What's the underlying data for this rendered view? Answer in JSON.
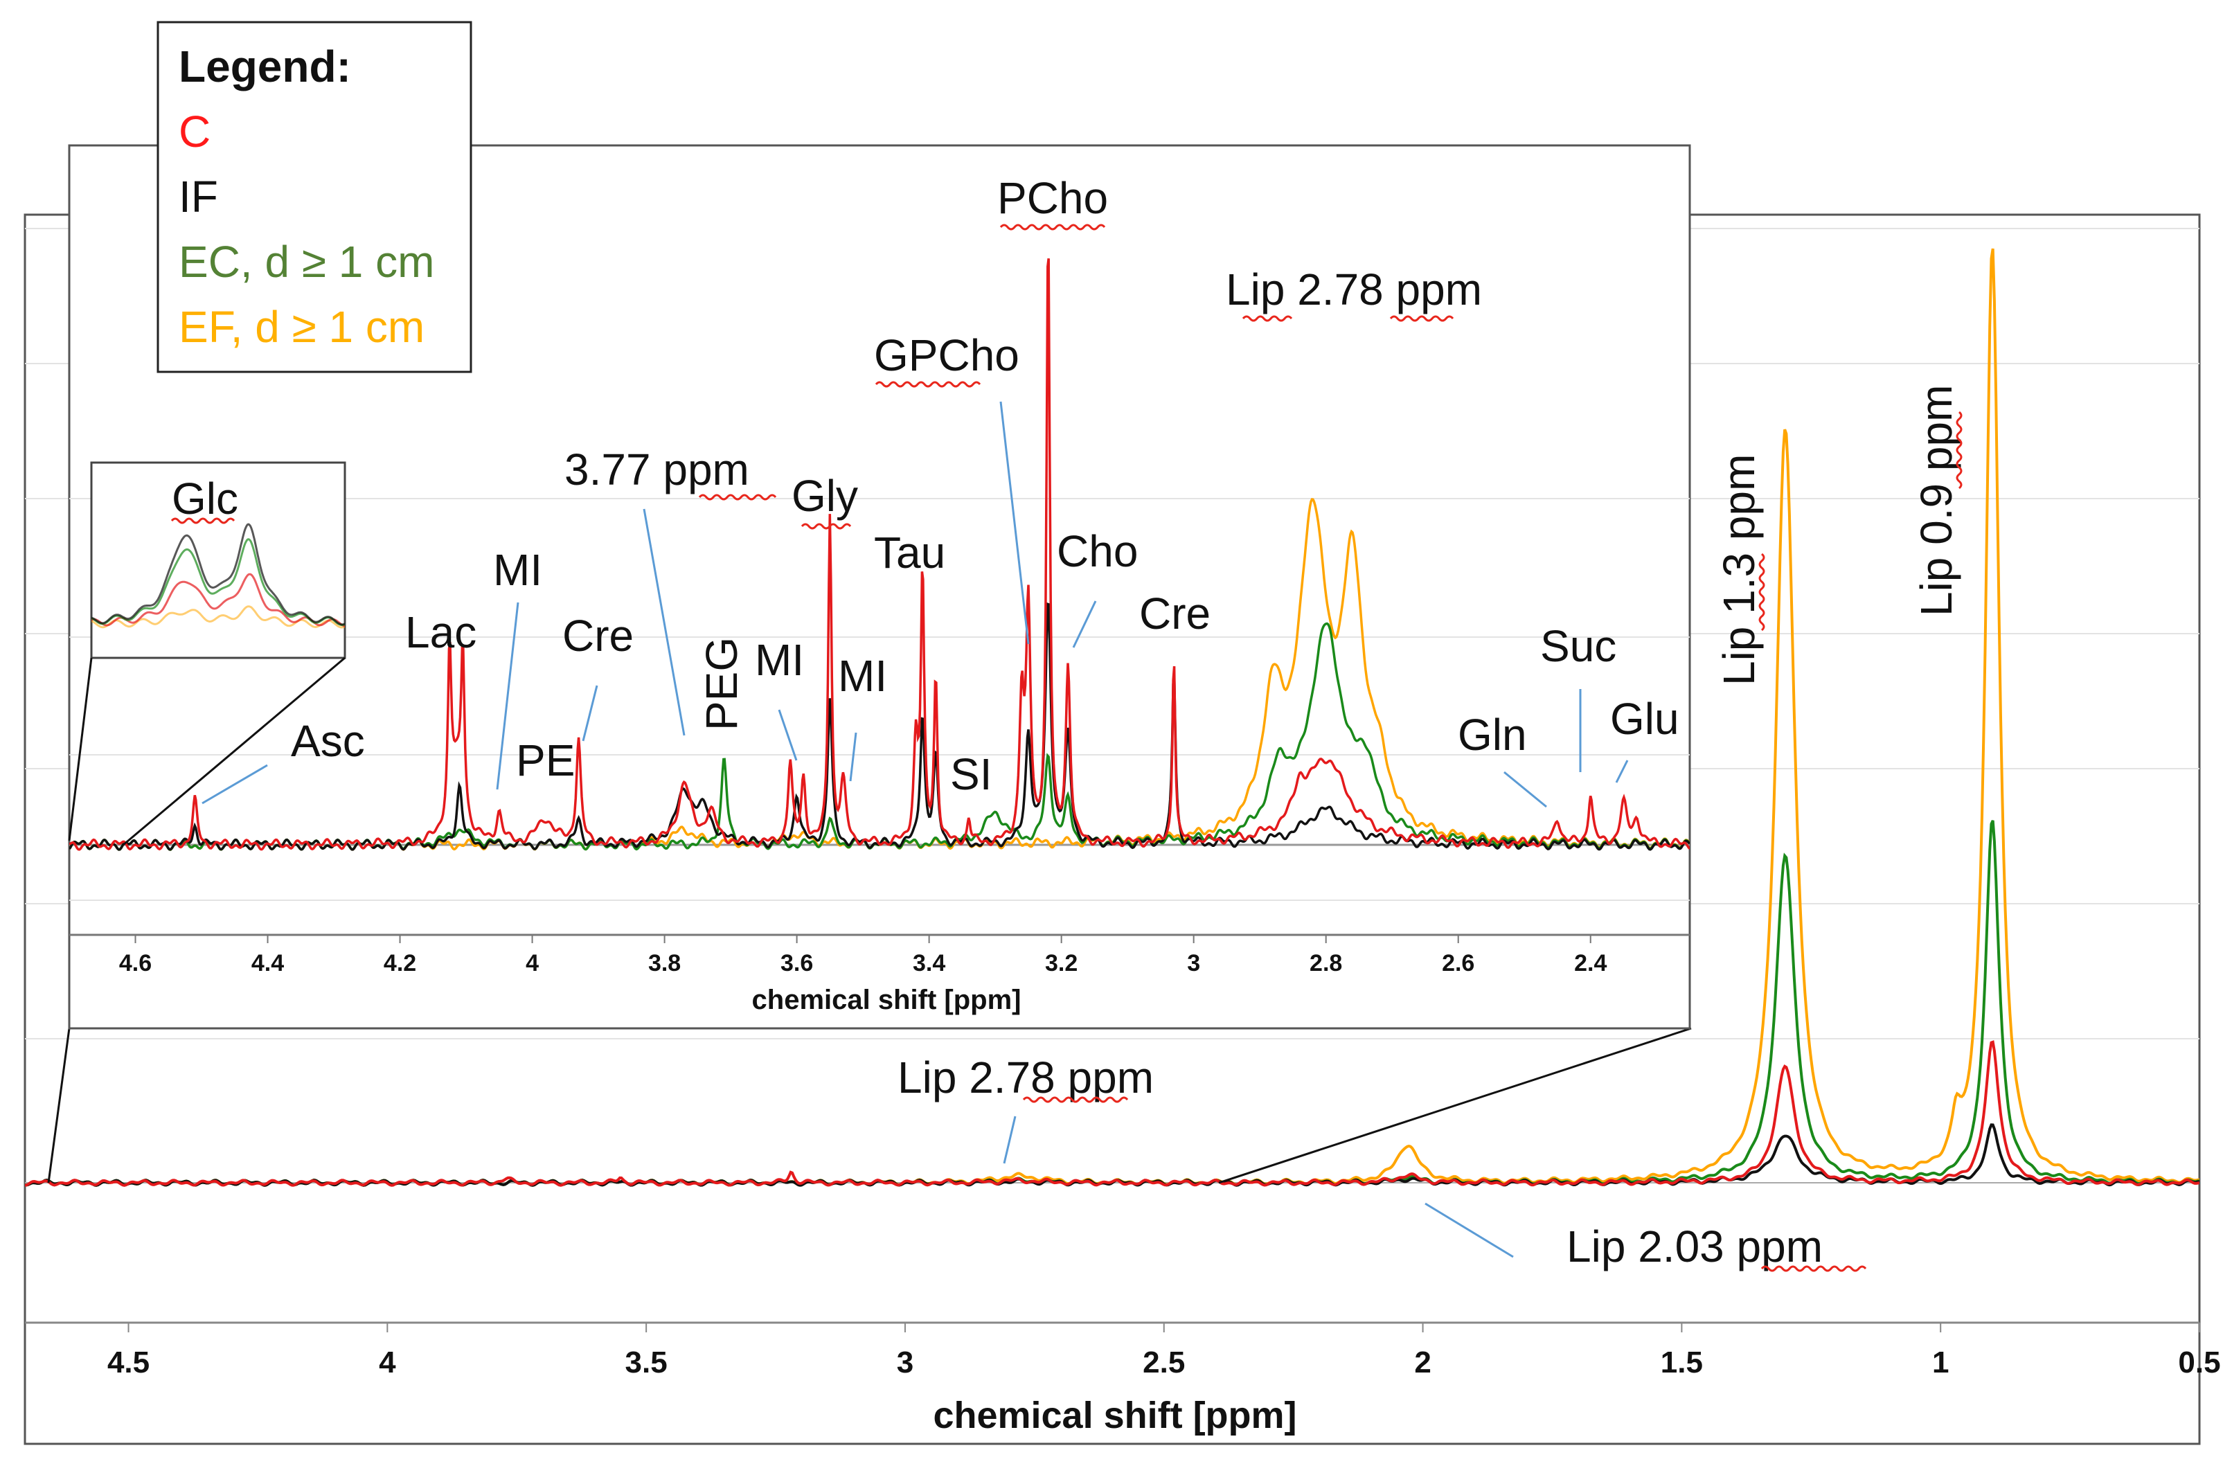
{
  "legend": {
    "title": "Legend:",
    "entries": [
      {
        "label": "C",
        "color": "#ff1a1a"
      },
      {
        "label": "IF",
        "color": "#111111"
      },
      {
        "label": "EC, d ≥ 1 cm",
        "color": "#548235"
      },
      {
        "label": "EF, d ≥ 1 cm",
        "color": "#ffb000"
      }
    ]
  },
  "colors": {
    "C": "#e41a1c",
    "IF": "#111111",
    "EC": "#1a8a1a",
    "EF": "#ffa500",
    "grid": "#e3e3e3",
    "pointer": "#5b9bd5"
  },
  "chart_data": [
    {
      "type": "line",
      "name": "full spectrum",
      "xlabel": "chemical shift [ppm]",
      "xlim": [
        4.7,
        0.5
      ],
      "x_ticks": [
        "4.5",
        "4",
        "3.5",
        "3",
        "2.5",
        "2",
        "1.5",
        "1",
        "0.5"
      ],
      "peaks_ppm": {
        "Lip 2.78 ppm": 2.78,
        "Lip 2.03 ppm": 2.03,
        "Lip 1.3 ppm": 1.3,
        "Lip 0.9 ppm": 0.9
      },
      "series": [
        {
          "name": "C",
          "relative_heights": {
            "2.78": 0.01,
            "2.03": 0.04,
            "1.3": 0.62,
            "0.9": 0.75
          }
        },
        {
          "name": "IF",
          "relative_heights": {
            "2.78": 0.005,
            "2.03": 0.02,
            "1.3": 0.25,
            "0.9": 0.3
          }
        },
        {
          "name": "EC, d ≥ 1 cm",
          "relative_heights": {
            "2.78": 0.008,
            "2.03": 0.03,
            "1.3": 1.75,
            "0.9": 1.93
          }
        },
        {
          "name": "EF, d ≥ 1 cm",
          "relative_heights": {
            "2.78": 0.03,
            "2.03": 0.2,
            "1.3": 4.03,
            "0.9": 4.99
          }
        }
      ],
      "annotations": [
        "Lip 2.78 ppm",
        "Lip 2.03 ppm",
        "Lip 1.3 ppm",
        "Lip 0.9 ppm"
      ]
    },
    {
      "type": "line",
      "name": "inset 4.7 - 2.25 ppm",
      "xlabel": "chemical shift [ppm]",
      "xlim": [
        4.7,
        2.25
      ],
      "x_ticks": [
        "4.6",
        "4.4",
        "4.2",
        "4",
        "3.8",
        "3.6",
        "3.4",
        "3.2",
        "3",
        "2.8",
        "2.6",
        "2.4"
      ],
      "peak_labels": [
        {
          "label": "Asc",
          "ppm": 4.51
        },
        {
          "label": "Lac",
          "ppm": 4.11
        },
        {
          "label": "MI",
          "ppm": 4.05
        },
        {
          "label": "PE",
          "ppm": 3.98
        },
        {
          "label": "Cre",
          "ppm": 3.93
        },
        {
          "label": "3.77 ppm",
          "ppm": 3.77
        },
        {
          "label": "PEG",
          "ppm": 3.71
        },
        {
          "label": "MI",
          "ppm": 3.61
        },
        {
          "label": "Gly",
          "ppm": 3.55
        },
        {
          "label": "MI",
          "ppm": 3.53
        },
        {
          "label": "Tau",
          "ppm": 3.42
        },
        {
          "label": "SI",
          "ppm": 3.34
        },
        {
          "label": "GPCho",
          "ppm": 3.23
        },
        {
          "label": "PCho",
          "ppm": 3.22
        },
        {
          "label": "Cho",
          "ppm": 3.19
        },
        {
          "label": "Cre",
          "ppm": 3.03
        },
        {
          "label": "Lip 2.78 ppm",
          "ppm": 2.78
        },
        {
          "label": "Gln",
          "ppm": 2.45
        },
        {
          "label": "Suc",
          "ppm": 2.4
        },
        {
          "label": "Glu",
          "ppm": 2.34
        }
      ],
      "series_peak_heights": {
        "C": {
          "4.51": 0.09,
          "4.12": 0.33,
          "4.10": 0.33,
          "3.93": 0.21,
          "3.77": 0.12,
          "3.55": 0.67,
          "3.41": 0.54,
          "3.25": 0.46,
          "3.22": 1.23,
          "3.19": 0.36,
          "3.03": 0.38,
          "2.80": 0.21,
          "2.40": 0.11
        },
        "IF": {
          "3.77": 0.13,
          "3.55": 0.3,
          "3.41": 0.27,
          "3.22": 0.49,
          "3.19": 0.22,
          "3.03": 0.35,
          "2.80": 0.07
        },
        "EC, d ≥ 1 cm": {
          "3.71": 0.17,
          "3.55": 0.05,
          "3.22": 0.17,
          "2.80": 0.46
        },
        "EF, d ≥ 1 cm": {
          "3.77": 0.03,
          "2.82": 0.69,
          "2.77": 0.58
        }
      }
    },
    {
      "type": "line",
      "name": "Glc zoom",
      "title": "Glc",
      "series": [
        "C",
        "IF",
        "EC, d ≥ 1 cm",
        "EF, d ≥ 1 cm"
      ]
    }
  ]
}
